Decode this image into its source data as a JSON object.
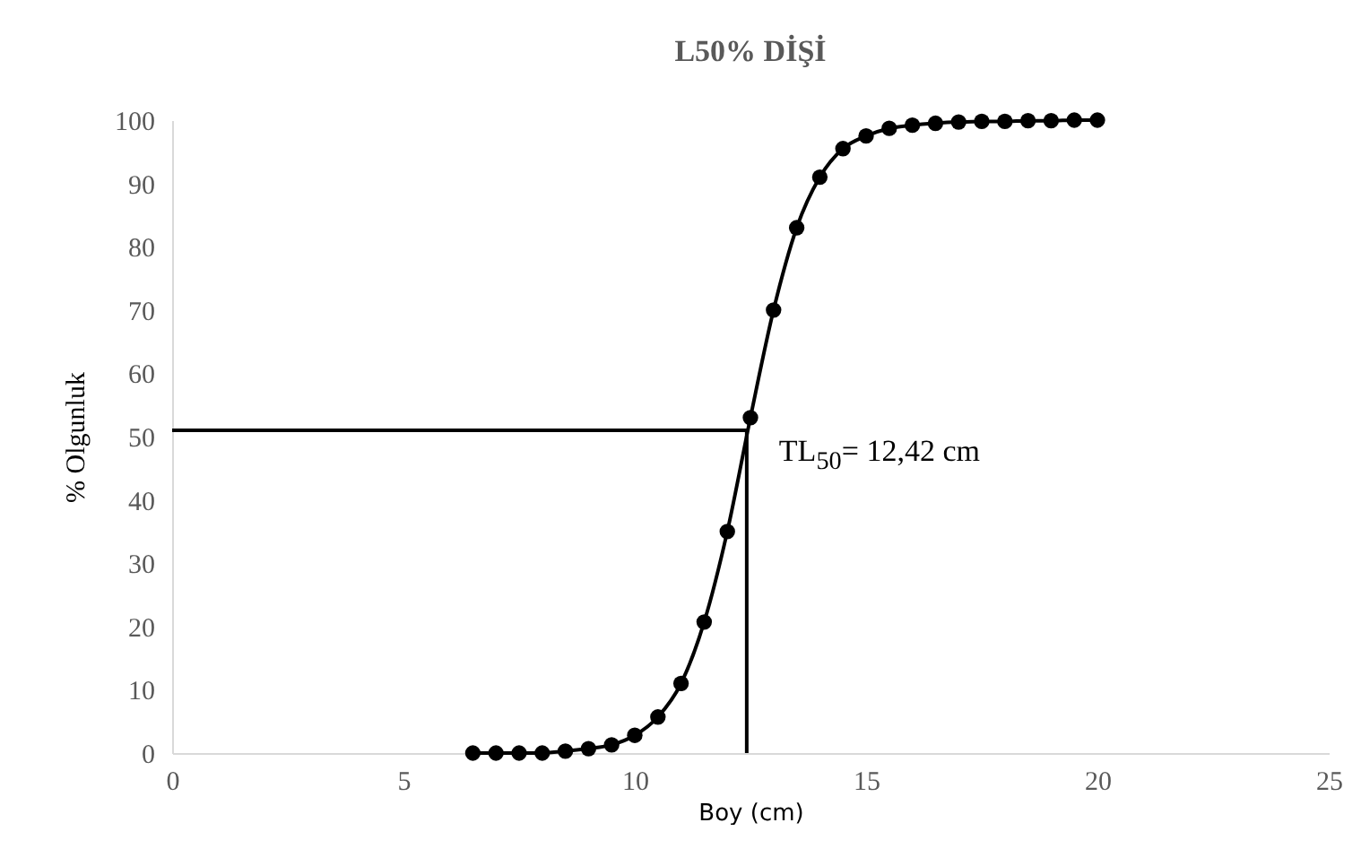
{
  "chart_data": {
    "type": "line",
    "title": "L50%  DİŞİ",
    "xlabel": "Boy (cm)",
    "ylabel": "% Olgunluk",
    "xlim": [
      0,
      25
    ],
    "xticks": [
      0,
      5,
      10,
      15,
      20,
      25
    ],
    "ylim": [
      0,
      100
    ],
    "yticks": [
      0,
      10,
      20,
      30,
      40,
      50,
      60,
      70,
      80,
      90,
      100
    ],
    "grid": false,
    "series": [
      {
        "color": "#000000",
        "marker": "circle",
        "x": [
          6.5,
          7,
          7.5,
          8,
          8.5,
          9,
          9.5,
          10,
          10.5,
          11,
          11.5,
          12,
          12.5,
          13,
          13.5,
          14,
          14.5,
          15,
          15.5,
          16,
          16.5,
          17,
          17.5,
          18,
          18.5,
          19,
          19.5,
          20
        ],
        "values": [
          0,
          0,
          0,
          0,
          0.3,
          0.7,
          1.3,
          2.8,
          5.7,
          11,
          20.7,
          35,
          53,
          70,
          83,
          91,
          95.5,
          97.5,
          98.7,
          99.2,
          99.5,
          99.7,
          99.8,
          99.8,
          99.9,
          99.9,
          100,
          100
        ]
      },
      {
        "color": "#000000",
        "marker": "none",
        "x": [
          0,
          12.42,
          12.42
        ],
        "values": [
          51,
          51,
          0
        ]
      }
    ],
    "annotations": [
      {
        "text": "TL$_{50}$= 12,42 cm",
        "x": 12.42,
        "y": 51
      }
    ]
  }
}
